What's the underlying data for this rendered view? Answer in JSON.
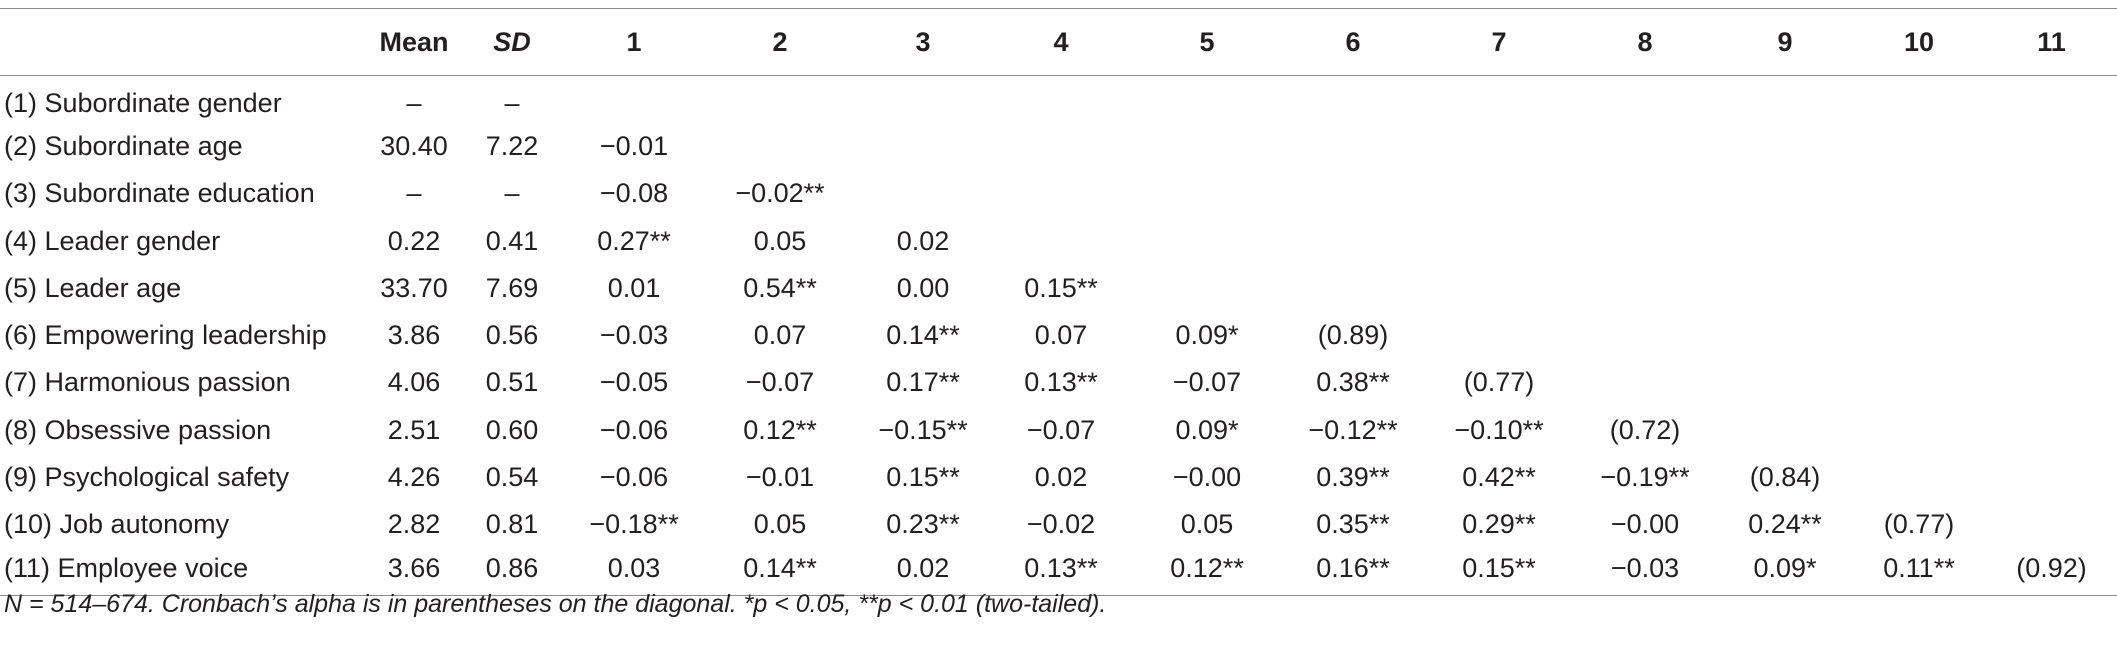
{
  "table": {
    "columns": [
      "",
      "Mean",
      "SD",
      "1",
      "2",
      "3",
      "4",
      "5",
      "6",
      "7",
      "8",
      "9",
      "10",
      "11"
    ],
    "rows": [
      [
        "(1) Subordinate gender",
        "–",
        "–",
        "",
        "",
        "",
        "",
        "",
        "",
        "",
        "",
        "",
        "",
        ""
      ],
      [
        "(2) Subordinate age",
        "30.40",
        "7.22",
        "−0.01",
        "",
        "",
        "",
        "",
        "",
        "",
        "",
        "",
        "",
        ""
      ],
      [
        "(3) Subordinate education",
        "–",
        "–",
        "−0.08",
        "−0.02**",
        "",
        "",
        "",
        "",
        "",
        "",
        "",
        "",
        ""
      ],
      [
        "(4) Leader gender",
        "0.22",
        "0.41",
        "0.27**",
        "0.05",
        "0.02",
        "",
        "",
        "",
        "",
        "",
        "",
        "",
        ""
      ],
      [
        "(5) Leader age",
        "33.70",
        "7.69",
        "0.01",
        "0.54**",
        "0.00",
        "0.15**",
        "",
        "",
        "",
        "",
        "",
        "",
        ""
      ],
      [
        "(6) Empowering leadership",
        "3.86",
        "0.56",
        "−0.03",
        "0.07",
        "0.14**",
        "0.07",
        "0.09*",
        "(0.89)",
        "",
        "",
        "",
        "",
        ""
      ],
      [
        "(7) Harmonious passion",
        "4.06",
        "0.51",
        "−0.05",
        "−0.07",
        "0.17**",
        "0.13**",
        "−0.07",
        "0.38**",
        "(0.77)",
        "",
        "",
        "",
        ""
      ],
      [
        "(8) Obsessive passion",
        "2.51",
        "0.60",
        "−0.06",
        "0.12**",
        "−0.15**",
        "−0.07",
        "0.09*",
        "−0.12**",
        "−0.10**",
        "(0.72)",
        "",
        "",
        ""
      ],
      [
        "(9) Psychological safety",
        "4.26",
        "0.54",
        "−0.06",
        "−0.01",
        "0.15**",
        "0.02",
        "−0.00",
        "0.39**",
        "0.42**",
        "−0.19**",
        "(0.84)",
        "",
        ""
      ],
      [
        "(10) Job autonomy",
        "2.82",
        "0.81",
        "−0.18**",
        "0.05",
        "0.23**",
        "−0.02",
        "0.05",
        "0.35**",
        "0.29**",
        "−0.00",
        "0.24**",
        "(0.77)",
        ""
      ],
      [
        "(11) Employee voice",
        "3.66",
        "0.86",
        "0.03",
        "0.14**",
        "0.02",
        "0.13**",
        "0.12**",
        "0.16**",
        "0.15**",
        "−0.03",
        "0.09*",
        "0.11**",
        "(0.92)"
      ]
    ]
  },
  "note": "N = 514–674. Cronbach’s alpha is in parentheses on the diagonal. *p < 0.05, **p < 0.01 (two-tailed)."
}
